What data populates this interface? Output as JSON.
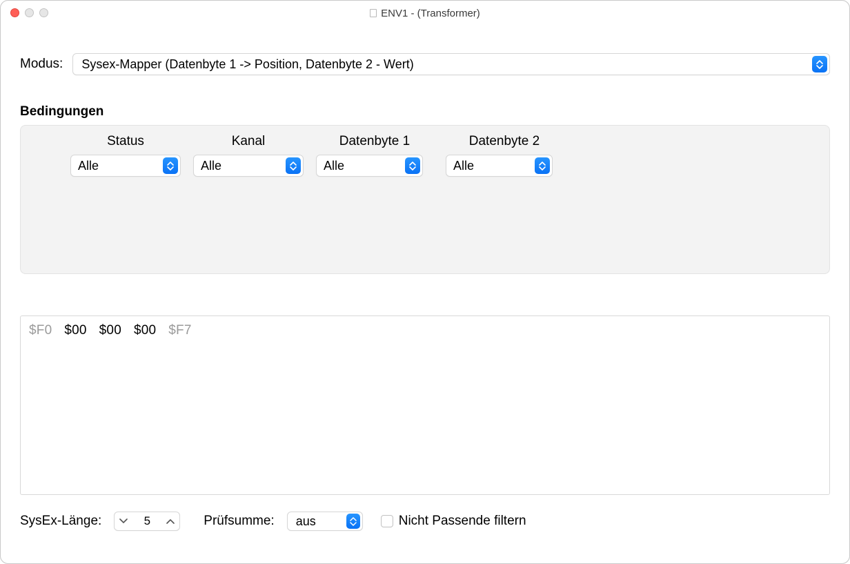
{
  "window": {
    "title": "ENV1 - (Transformer)"
  },
  "mode": {
    "label": "Modus:",
    "value": "Sysex-Mapper (Datenbyte 1 -> Position, Datenbyte 2 - Wert)"
  },
  "conditions": {
    "title": "Bedingungen",
    "columns": [
      {
        "header": "Status",
        "value": "Alle"
      },
      {
        "header": "Kanal",
        "value": "Alle"
      },
      {
        "header": "Datenbyte 1",
        "value": "Alle"
      },
      {
        "header": "Datenbyte 2",
        "value": "Alle"
      }
    ]
  },
  "hex": {
    "bytes": [
      {
        "text": "$F0",
        "dim": true
      },
      {
        "text": "$00",
        "dim": false
      },
      {
        "text": "$00",
        "dim": false
      },
      {
        "text": "$00",
        "dim": false
      },
      {
        "text": "$F7",
        "dim": true
      }
    ]
  },
  "footer": {
    "sysex_length_label": "SysEx-Länge:",
    "sysex_length_value": "5",
    "checksum_label": "Prüfsumme:",
    "checksum_value": "aus",
    "filter_checkbox_label": "Nicht Passende filtern",
    "filter_checked": false
  },
  "colors": {
    "accent": "#0a7aff",
    "box_bg": "#f3f3f3",
    "border": "#d6d6d6",
    "dim_text": "#9a9a9a"
  }
}
